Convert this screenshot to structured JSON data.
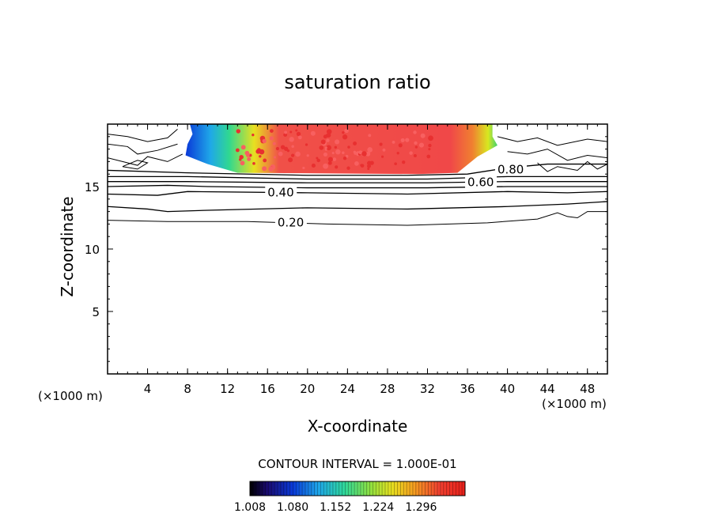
{
  "chart_data": {
    "type": "heatmap",
    "title": "saturation ratio",
    "xlabel": "X-coordinate",
    "ylabel": "Z-coordinate",
    "x_unit": "(×1000 m)",
    "y_unit": "(×1000 m)",
    "xlim": [
      0,
      50
    ],
    "ylim": [
      0,
      20
    ],
    "x_ticks": [
      4,
      8,
      12,
      16,
      20,
      24,
      28,
      32,
      36,
      40,
      44,
      48
    ],
    "y_ticks": [
      5,
      10,
      15
    ],
    "contour_interval_label": "CONTOUR INTERVAL = 1.000E-01",
    "colorbar": {
      "ticks": [
        "1.008",
        "1.080",
        "1.152",
        "1.224",
        "1.296"
      ],
      "range": [
        1.008,
        1.37
      ]
    },
    "supersaturated_region": {
      "x_range": [
        7,
        39
      ],
      "z_range": [
        16.0,
        19.8
      ],
      "core_value": 1.31
    },
    "contours": [
      {
        "value": 0.2,
        "label": "0.20",
        "label_x": 17,
        "points": [
          [
            0,
            12.3
          ],
          [
            6,
            12.2
          ],
          [
            14,
            12.2
          ],
          [
            22,
            12.0
          ],
          [
            30,
            11.9
          ],
          [
            38,
            12.1
          ],
          [
            43,
            12.4
          ],
          [
            45,
            12.9
          ],
          [
            46,
            12.6
          ],
          [
            47,
            12.5
          ],
          [
            48,
            13.0
          ],
          [
            50,
            13.0
          ]
        ]
      },
      {
        "value": 0.3,
        "points": [
          [
            0,
            13.4
          ],
          [
            4,
            13.2
          ],
          [
            6,
            13.0
          ],
          [
            10,
            13.1
          ],
          [
            20,
            13.3
          ],
          [
            30,
            13.2
          ],
          [
            40,
            13.4
          ],
          [
            46,
            13.6
          ],
          [
            50,
            13.8
          ]
        ]
      },
      {
        "value": 0.4,
        "label": "0.40",
        "label_x": 16,
        "points": [
          [
            0,
            14.4
          ],
          [
            5,
            14.3
          ],
          [
            8,
            14.6
          ],
          [
            20,
            14.5
          ],
          [
            30,
            14.4
          ],
          [
            40,
            14.6
          ],
          [
            46,
            14.5
          ],
          [
            50,
            14.6
          ]
        ]
      },
      {
        "value": 0.5,
        "points": [
          [
            0,
            15.0
          ],
          [
            6,
            15.1
          ],
          [
            10,
            15.0
          ],
          [
            20,
            14.9
          ],
          [
            32,
            14.9
          ],
          [
            40,
            15.0
          ],
          [
            50,
            15.0
          ]
        ]
      },
      {
        "value": 0.6,
        "label": "0.60",
        "label_x": 36,
        "points": [
          [
            0,
            15.4
          ],
          [
            8,
            15.4
          ],
          [
            20,
            15.3
          ],
          [
            32,
            15.3
          ],
          [
            40,
            15.4
          ],
          [
            50,
            15.4
          ]
        ]
      },
      {
        "value": 0.7,
        "points": [
          [
            0,
            15.8
          ],
          [
            8,
            15.8
          ],
          [
            20,
            15.6
          ],
          [
            32,
            15.6
          ],
          [
            40,
            15.8
          ],
          [
            50,
            15.8
          ]
        ]
      },
      {
        "value": 0.8,
        "label": "0.80",
        "label_x": 39,
        "points": [
          [
            0,
            16.3
          ],
          [
            8,
            16.1
          ],
          [
            20,
            15.9
          ],
          [
            30,
            15.9
          ],
          [
            36,
            16.0
          ],
          [
            40,
            16.5
          ],
          [
            44,
            16.8
          ],
          [
            50,
            16.8
          ]
        ]
      }
    ],
    "grid": false
  }
}
